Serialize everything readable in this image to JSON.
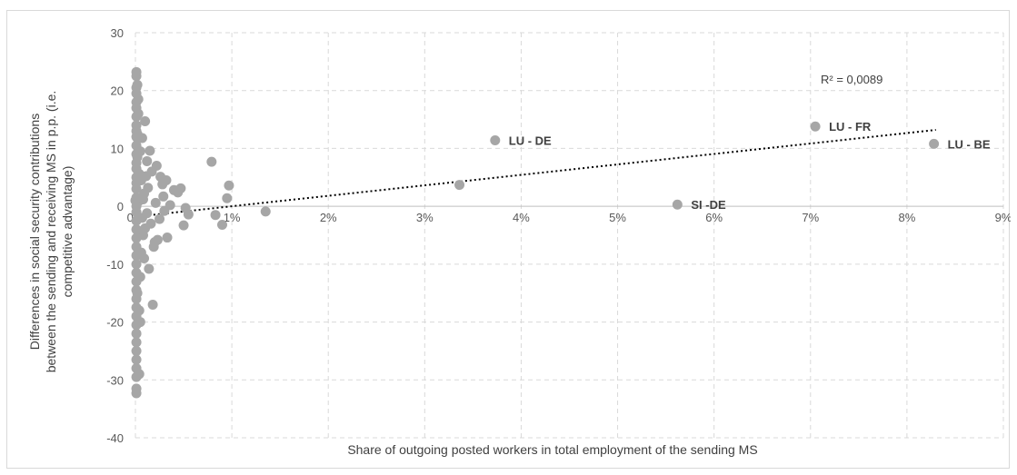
{
  "chart_data": {
    "type": "scatter",
    "title": "",
    "xlabel": "Share of  outgoing posted workers in total employment of the sending MS",
    "ylabel_lines": [
      "Differences in social security contributions",
      "between the sending and receiving MS in p.p. (i.e.",
      "competitive advantage)"
    ],
    "xlim": [
      0,
      9
    ],
    "ylim": [
      -40,
      30
    ],
    "x_unit": "%",
    "x_ticks": [
      "0%",
      "1%",
      "2%",
      "3%",
      "4%",
      "5%",
      "6%",
      "7%",
      "8%",
      "9%"
    ],
    "y_ticks": [
      "-40",
      "-30",
      "-20",
      "-10",
      "0",
      "10",
      "20",
      "30"
    ],
    "grid": "dashed",
    "legend": "none",
    "trendline": {
      "style": "dotted",
      "label": "R² = 0,0089",
      "from": [
        0.0,
        -1.8
      ],
      "to": [
        8.3,
        13.2
      ]
    },
    "colors": {
      "point": "#a6a6a6",
      "trend": "#000000",
      "grid": "#d9d9d9"
    },
    "annotations": [
      {
        "text": "LU - DE",
        "x": 3.73,
        "y": 11.4
      },
      {
        "text": "LU - FR",
        "x": 7.05,
        "y": 13.8
      },
      {
        "text": "LU - BE",
        "x": 8.28,
        "y": 10.8
      },
      {
        "text": "SI -DE",
        "x": 5.62,
        "y": 0.3
      }
    ],
    "points": [
      [
        3.73,
        11.4
      ],
      [
        7.05,
        13.8
      ],
      [
        8.28,
        10.8
      ],
      [
        5.62,
        0.3
      ],
      [
        3.36,
        3.7
      ],
      [
        1.35,
        -0.9
      ],
      [
        0.97,
        3.6
      ],
      [
        0.95,
        1.4
      ],
      [
        0.9,
        -3.2
      ],
      [
        0.83,
        -1.5
      ],
      [
        0.79,
        7.7
      ],
      [
        0.55,
        -1.4
      ],
      [
        0.52,
        -0.3
      ],
      [
        0.5,
        -3.3
      ],
      [
        0.47,
        3.1
      ],
      [
        0.44,
        2.4
      ],
      [
        0.4,
        2.8
      ],
      [
        0.36,
        0.2
      ],
      [
        0.33,
        -5.4
      ],
      [
        0.32,
        4.5
      ],
      [
        0.29,
        1.7
      ],
      [
        0.26,
        5.1
      ],
      [
        0.23,
        -5.8
      ],
      [
        0.22,
        7.0
      ],
      [
        0.2,
        -6.2
      ],
      [
        0.19,
        -7.0
      ],
      [
        0.18,
        -17.0
      ],
      [
        0.17,
        6.0
      ],
      [
        0.15,
        9.6
      ],
      [
        0.14,
        -10.8
      ],
      [
        0.13,
        3.2
      ],
      [
        0.12,
        7.8
      ],
      [
        0.1,
        14.7
      ],
      [
        0.1,
        -3.8
      ],
      [
        0.09,
        2.2
      ],
      [
        0.08,
        -5.0
      ],
      [
        0.07,
        11.8
      ],
      [
        0.06,
        -8.0
      ],
      [
        0.05,
        -12.2
      ],
      [
        0.05,
        -20.0
      ],
      [
        0.04,
        5.6
      ],
      [
        0.04,
        -29.0
      ],
      [
        0.03,
        16.0
      ],
      [
        0.03,
        0.8
      ],
      [
        0.02,
        21.0
      ],
      [
        0.02,
        -15.0
      ],
      [
        0.02,
        8.5
      ],
      [
        0.01,
        23.2
      ],
      [
        0.01,
        22.5
      ],
      [
        0.01,
        20.5
      ],
      [
        0.01,
        19.5
      ],
      [
        0.01,
        18.0
      ],
      [
        0.01,
        17.0
      ],
      [
        0.01,
        15.5
      ],
      [
        0.01,
        14.0
      ],
      [
        0.01,
        13.0
      ],
      [
        0.01,
        12.0
      ],
      [
        0.01,
        10.5
      ],
      [
        0.01,
        9.0
      ],
      [
        0.01,
        7.5
      ],
      [
        0.01,
        6.5
      ],
      [
        0.01,
        5.0
      ],
      [
        0.01,
        4.0
      ],
      [
        0.01,
        3.0
      ],
      [
        0.01,
        1.5
      ],
      [
        0.01,
        0.0
      ],
      [
        0.01,
        -1.0
      ],
      [
        0.01,
        -2.5
      ],
      [
        0.01,
        -4.0
      ],
      [
        0.01,
        -5.5
      ],
      [
        0.01,
        -7.0
      ],
      [
        0.01,
        -8.5
      ],
      [
        0.01,
        -10.0
      ],
      [
        0.01,
        -11.5
      ],
      [
        0.01,
        -13.0
      ],
      [
        0.01,
        -14.5
      ],
      [
        0.01,
        -16.0
      ],
      [
        0.01,
        -17.5
      ],
      [
        0.01,
        -19.0
      ],
      [
        0.01,
        -20.5
      ],
      [
        0.01,
        -22.0
      ],
      [
        0.01,
        -23.5
      ],
      [
        0.01,
        -25.0
      ],
      [
        0.01,
        -26.5
      ],
      [
        0.01,
        -28.0
      ],
      [
        0.01,
        -29.5
      ],
      [
        0.01,
        -31.5
      ],
      [
        0.01,
        -32.3
      ],
      [
        0.0,
        1.0
      ],
      [
        0.02,
        12.5
      ],
      [
        0.03,
        18.5
      ],
      [
        0.04,
        -18.0
      ],
      [
        0.05,
        9.5
      ],
      [
        0.06,
        4.5
      ],
      [
        0.07,
        -2.0
      ],
      [
        0.08,
        1.2
      ],
      [
        0.09,
        -9.0
      ],
      [
        0.11,
        5.2
      ],
      [
        0.12,
        -1.2
      ],
      [
        0.16,
        -3.0
      ],
      [
        0.21,
        0.6
      ],
      [
        0.25,
        -2.2
      ],
      [
        0.28,
        3.8
      ],
      [
        0.3,
        -0.8
      ]
    ]
  }
}
